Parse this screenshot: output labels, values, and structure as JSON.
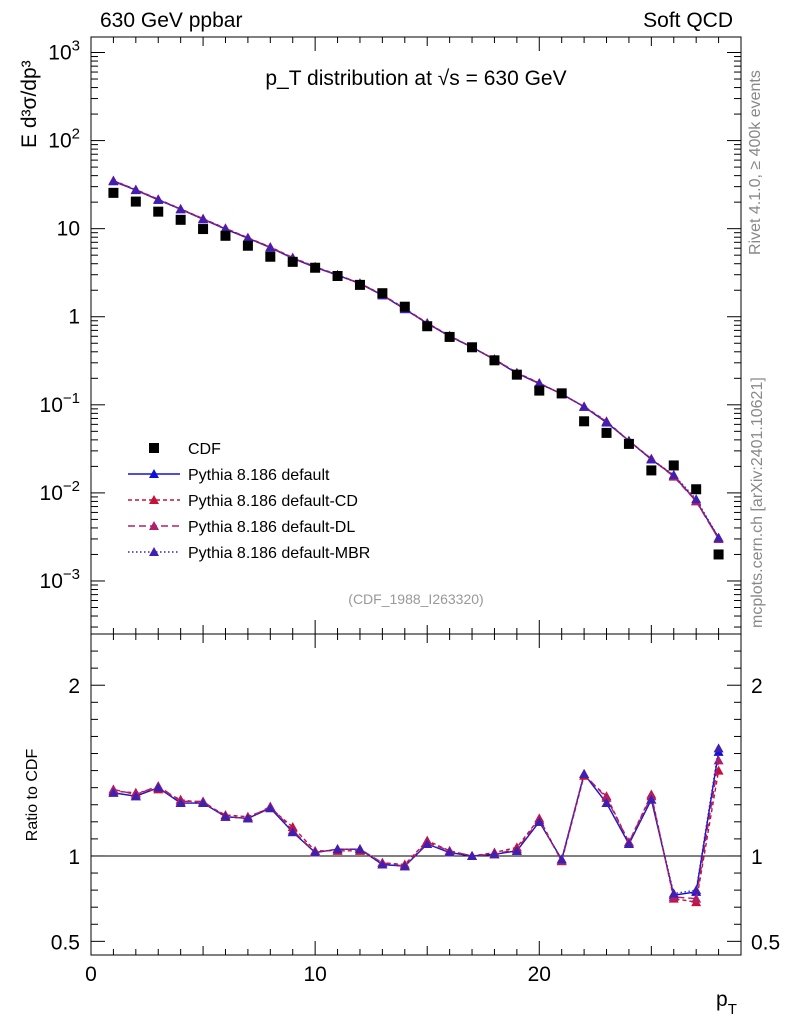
{
  "header": {
    "left": "630 GeV ppbar",
    "right": "Soft QCD"
  },
  "side_labels": {
    "rivet": "Rivet 4.1.0, ≥ 400k events",
    "mcplots": "mcplots.cern.ch [arXiv:2401.10621]"
  },
  "chart_data": [
    {
      "type": "scatter",
      "panel": "main",
      "title": "p_T distribution at √s = 630 GeV",
      "ylabel": "E d³σ/dp³",
      "yscale": "log",
      "ylim": [
        0.00025,
        1500
      ],
      "xlim": [
        0,
        29
      ],
      "reference_label": "(CDF_1988_I263320)",
      "y_ticks": [
        {
          "value": 0.001,
          "base": "10",
          "exp": "−3"
        },
        {
          "value": 0.01,
          "base": "10",
          "exp": "−2"
        },
        {
          "value": 0.1,
          "base": "10",
          "exp": "−1"
        },
        {
          "value": 1,
          "base": "1",
          "exp": ""
        },
        {
          "value": 10,
          "base": "10",
          "exp": ""
        },
        {
          "value": 100,
          "base": "10",
          "exp": "2"
        },
        {
          "value": 1000,
          "base": "10",
          "exp": "3"
        }
      ],
      "x": [
        1,
        2,
        3,
        4,
        5,
        6,
        7,
        8,
        9,
        10,
        11,
        12,
        13,
        14,
        15,
        16,
        17,
        18,
        19,
        20,
        21,
        22,
        23,
        24,
        25,
        26,
        27,
        28
      ],
      "data": {
        "name": "CDF",
        "color": "#000000",
        "values": [
          25.5,
          20.3,
          15.6,
          12.6,
          9.9,
          8.3,
          6.4,
          4.8,
          4.2,
          3.6,
          2.9,
          2.3,
          1.85,
          1.3,
          0.78,
          0.59,
          0.45,
          0.32,
          0.22,
          0.145,
          0.135,
          0.065,
          0.048,
          0.036,
          0.018,
          0.0205,
          0.011,
          0.002
        ]
      },
      "series": [
        {
          "name": "Pythia 8.186 default",
          "color": "#1010dd",
          "dash": "",
          "values": [
            34.5,
            27.4,
            21.2,
            16.6,
            12.8,
            9.9,
            7.8,
            6.1,
            4.6,
            3.64,
            2.96,
            2.38,
            1.75,
            1.22,
            0.84,
            0.6,
            0.45,
            0.326,
            0.228,
            0.174,
            0.133,
            0.095,
            0.063,
            0.039,
            0.024,
            0.0157,
            0.0081,
            0.0031
          ]
        },
        {
          "name": "Pythia 8.186 default-CD",
          "color": "#c8103a",
          "dash": "4,3",
          "values": [
            35.2,
            27.8,
            21.6,
            16.8,
            13.0,
            10.1,
            7.9,
            6.2,
            4.7,
            3.7,
            3.0,
            2.4,
            1.78,
            1.24,
            0.85,
            0.61,
            0.45,
            0.33,
            0.232,
            0.177,
            0.132,
            0.096,
            0.065,
            0.039,
            0.0245,
            0.0155,
            0.0081,
            0.003
          ]
        },
        {
          "name": "Pythia 8.186 default-DL",
          "color": "#b0206a",
          "dash": "7,4",
          "values": [
            35.0,
            27.6,
            21.5,
            16.7,
            12.9,
            10.0,
            7.85,
            6.15,
            4.65,
            3.68,
            2.98,
            2.39,
            1.77,
            1.23,
            0.845,
            0.605,
            0.452,
            0.328,
            0.23,
            0.176,
            0.132,
            0.095,
            0.064,
            0.039,
            0.0243,
            0.0153,
            0.008,
            0.003
          ]
        },
        {
          "name": "Pythia 8.186 default-MBR",
          "color": "#4020b0",
          "dash": "1.5,2.5",
          "values": [
            34.8,
            27.5,
            21.3,
            16.6,
            12.8,
            9.95,
            7.8,
            6.1,
            4.62,
            3.65,
            2.97,
            2.38,
            1.76,
            1.22,
            0.84,
            0.6,
            0.45,
            0.327,
            0.229,
            0.175,
            0.133,
            0.095,
            0.064,
            0.039,
            0.024,
            0.016,
            0.0085,
            0.0031
          ]
        }
      ]
    },
    {
      "type": "line",
      "panel": "ratio",
      "ylabel": "Ratio to CDF",
      "xlabel": "p_T",
      "ylim": [
        0.42,
        2.3
      ],
      "xlim": [
        0,
        29
      ],
      "y_ticks": [
        "0.5",
        "1",
        "2"
      ],
      "x_ticks": [
        "0",
        "10",
        "20"
      ],
      "x": [
        1,
        2,
        3,
        4,
        5,
        6,
        7,
        8,
        9,
        10,
        11,
        12,
        13,
        14,
        15,
        16,
        17,
        18,
        19,
        20,
        21,
        22,
        23,
        24,
        25,
        26,
        27,
        28
      ],
      "series": [
        {
          "name": "Pythia 8.186 default",
          "color": "#1010dd",
          "dash": "",
          "values": [
            1.37,
            1.35,
            1.4,
            1.31,
            1.31,
            1.23,
            1.22,
            1.28,
            1.14,
            1.02,
            1.04,
            1.04,
            0.95,
            0.94,
            1.07,
            1.02,
            1.0,
            1.01,
            1.03,
            1.2,
            0.98,
            1.48,
            1.31,
            1.07,
            1.33,
            0.77,
            0.79,
            1.61
          ]
        },
        {
          "name": "Pythia 8.186 default-CD",
          "color": "#c8103a",
          "dash": "4,3",
          "values": [
            1.38,
            1.37,
            1.39,
            1.33,
            1.31,
            1.24,
            1.23,
            1.28,
            1.17,
            1.03,
            1.03,
            1.03,
            0.96,
            0.95,
            1.09,
            1.03,
            1.0,
            1.02,
            1.05,
            1.22,
            0.97,
            1.47,
            1.35,
            1.08,
            1.36,
            0.75,
            0.73,
            1.5
          ]
        },
        {
          "name": "Pythia 8.186 default-DL",
          "color": "#b0206a",
          "dash": "7,4",
          "values": [
            1.39,
            1.36,
            1.41,
            1.32,
            1.32,
            1.23,
            1.22,
            1.29,
            1.15,
            1.02,
            1.04,
            1.04,
            0.96,
            0.94,
            1.08,
            1.03,
            1.0,
            1.01,
            1.04,
            1.21,
            0.97,
            1.48,
            1.34,
            1.08,
            1.35,
            0.76,
            0.75,
            1.56
          ]
        },
        {
          "name": "Pythia 8.186 default-MBR",
          "color": "#4020b0",
          "dash": "1.5,2.5",
          "values": [
            1.37,
            1.35,
            1.4,
            1.31,
            1.31,
            1.23,
            1.22,
            1.28,
            1.14,
            1.02,
            1.04,
            1.04,
            0.95,
            0.94,
            1.07,
            1.02,
            1.0,
            1.01,
            1.03,
            1.2,
            0.98,
            1.48,
            1.31,
            1.07,
            1.33,
            0.78,
            0.8,
            1.63
          ]
        }
      ]
    }
  ]
}
